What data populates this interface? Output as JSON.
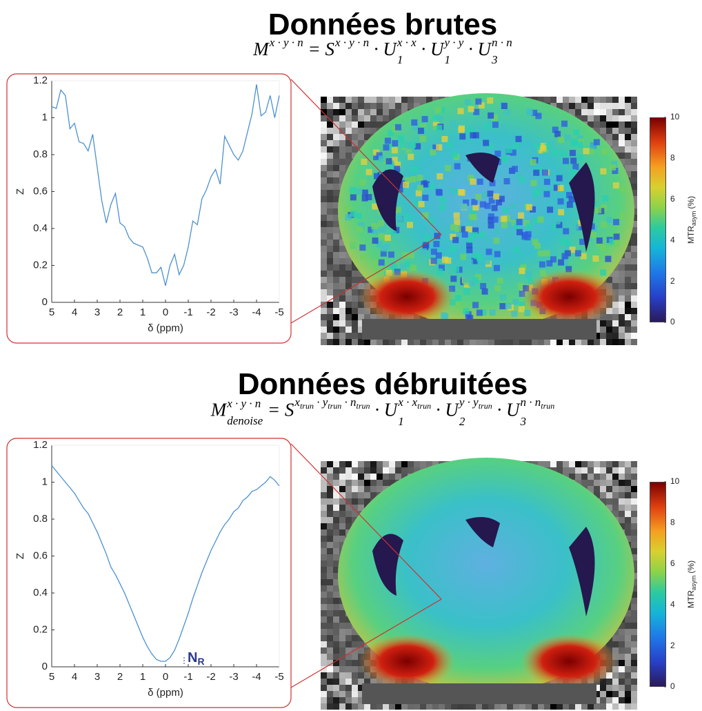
{
  "chart_data": [
    {
      "type": "line",
      "title": "Données brutes",
      "formula": [
        {
          "text": "M",
          "sup": [
            {
              "text": "x · y · n"
            }
          ]
        },
        {
          "text": " = "
        },
        {
          "text": "S",
          "sup": [
            {
              "text": "x · y · n"
            }
          ]
        },
        {
          "text": " · "
        },
        {
          "text": "U",
          "sub": "1",
          "sup": [
            {
              "text": "x · x"
            }
          ]
        },
        {
          "text": " · "
        },
        {
          "text": "U",
          "sub": "1",
          "sup": [
            {
              "text": "y · y"
            }
          ]
        },
        {
          "text": " · "
        },
        {
          "text": "U",
          "sub": "3",
          "sup": [
            {
              "text": "n · n"
            }
          ]
        }
      ],
      "x": [
        5,
        4.8,
        4.6,
        4.4,
        4.2,
        4,
        3.8,
        3.6,
        3.4,
        3.2,
        3,
        2.8,
        2.6,
        2.4,
        2.2,
        2,
        1.8,
        1.6,
        1.4,
        1.2,
        1,
        0.8,
        0.6,
        0.4,
        0.2,
        0,
        -0.2,
        -0.4,
        -0.6,
        -0.8,
        -1,
        -1.2,
        -1.4,
        -1.6,
        -1.8,
        -2,
        -2.2,
        -2.4,
        -2.6,
        -2.8,
        -3,
        -3.2,
        -3.4,
        -3.6,
        -3.8,
        -4,
        -4.2,
        -4.4,
        -4.6,
        -4.8,
        -5
      ],
      "values": [
        1.06,
        1.05,
        1.15,
        1.12,
        0.94,
        0.97,
        0.87,
        0.86,
        0.82,
        0.91,
        0.73,
        0.55,
        0.43,
        0.53,
        0.59,
        0.43,
        0.41,
        0.35,
        0.32,
        0.31,
        0.3,
        0.24,
        0.16,
        0.16,
        0.19,
        0.09,
        0.2,
        0.26,
        0.15,
        0.2,
        0.3,
        0.44,
        0.42,
        0.56,
        0.61,
        0.68,
        0.72,
        0.64,
        0.9,
        0.85,
        0.8,
        0.77,
        0.82,
        0.92,
        1.02,
        1.18,
        1.01,
        1.03,
        1.12,
        1.0,
        1.12
      ],
      "color": "#4a90d0",
      "xlim": [
        5,
        -5
      ],
      "xticks": [
        5,
        4,
        3,
        2,
        1,
        0,
        -1,
        -2,
        -3,
        -4,
        -5
      ],
      "ylim": [
        0,
        1.2
      ],
      "yticks": [
        0,
        0.2,
        0.4,
        0.6,
        0.8,
        1,
        1.2
      ],
      "xlabel": "δ (ppm)",
      "ylabel": "Z",
      "colorbar": {
        "lim": [
          0,
          10
        ],
        "ticks": [
          0,
          2,
          4,
          6,
          8,
          10
        ],
        "label": "MTR",
        "label_sub": "asym",
        "label_unit": "(%)"
      }
    },
    {
      "type": "line",
      "title": "Données débruitées",
      "formula": [
        {
          "text": "M",
          "sub": "denoise",
          "sup": [
            {
              "text": "x · y · n"
            }
          ]
        },
        {
          "text": " = "
        },
        {
          "text": "S",
          "sup": [
            {
              "text": "x",
              "sub": "trun"
            },
            {
              "text": " · y",
              "sub": "trun"
            },
            {
              "text": " · n",
              "sub": "trun"
            }
          ]
        },
        {
          "text": " · "
        },
        {
          "text": "U",
          "sub": "1",
          "sup": [
            {
              "text": "x · x",
              "sub": "trun"
            }
          ]
        },
        {
          "text": " · "
        },
        {
          "text": "U",
          "sub": "2",
          "sup": [
            {
              "text": "y · y",
              "sub": "trun"
            }
          ]
        },
        {
          "text": " · "
        },
        {
          "text": "U",
          "sub": "3",
          "sup": [
            {
              "text": "n · n",
              "sub": "trun"
            }
          ]
        }
      ],
      "x": [
        5,
        4.8,
        4.6,
        4.4,
        4.2,
        4,
        3.8,
        3.6,
        3.4,
        3.2,
        3,
        2.8,
        2.6,
        2.4,
        2.2,
        2,
        1.8,
        1.6,
        1.4,
        1.2,
        1,
        0.8,
        0.6,
        0.4,
        0.2,
        0,
        -0.2,
        -0.4,
        -0.6,
        -0.8,
        -1,
        -1.2,
        -1.4,
        -1.6,
        -1.8,
        -2,
        -2.2,
        -2.4,
        -2.6,
        -2.8,
        -3,
        -3.2,
        -3.4,
        -3.6,
        -3.8,
        -4,
        -4.2,
        -4.4,
        -4.6,
        -4.8,
        -5
      ],
      "values": [
        1.09,
        1.06,
        1.03,
        1.0,
        0.97,
        0.94,
        0.9,
        0.86,
        0.83,
        0.78,
        0.73,
        0.67,
        0.61,
        0.54,
        0.5,
        0.45,
        0.4,
        0.34,
        0.28,
        0.22,
        0.16,
        0.11,
        0.07,
        0.04,
        0.03,
        0.03,
        0.05,
        0.09,
        0.15,
        0.22,
        0.29,
        0.37,
        0.44,
        0.51,
        0.57,
        0.63,
        0.68,
        0.73,
        0.77,
        0.8,
        0.84,
        0.86,
        0.9,
        0.92,
        0.95,
        0.96,
        0.98,
        1.0,
        1.03,
        1.01,
        0.98
      ],
      "color": "#4a90d0",
      "xlim": [
        5,
        -5
      ],
      "xticks": [
        5,
        4,
        3,
        2,
        1,
        0,
        -1,
        -2,
        -3,
        -4,
        -5
      ],
      "ylim": [
        0,
        1.2
      ],
      "yticks": [
        0,
        0.2,
        0.4,
        0.6,
        0.8,
        1,
        1.2
      ],
      "xlabel": "δ (ppm)",
      "ylabel": "Z",
      "annotation": {
        "text": "N",
        "sub": "R"
      },
      "colorbar": {
        "lim": [
          0,
          10
        ],
        "ticks": [
          0,
          2,
          4,
          6,
          8,
          10
        ],
        "label": "MTR",
        "label_sub": "asym",
        "label_unit": "(%)"
      }
    }
  ]
}
